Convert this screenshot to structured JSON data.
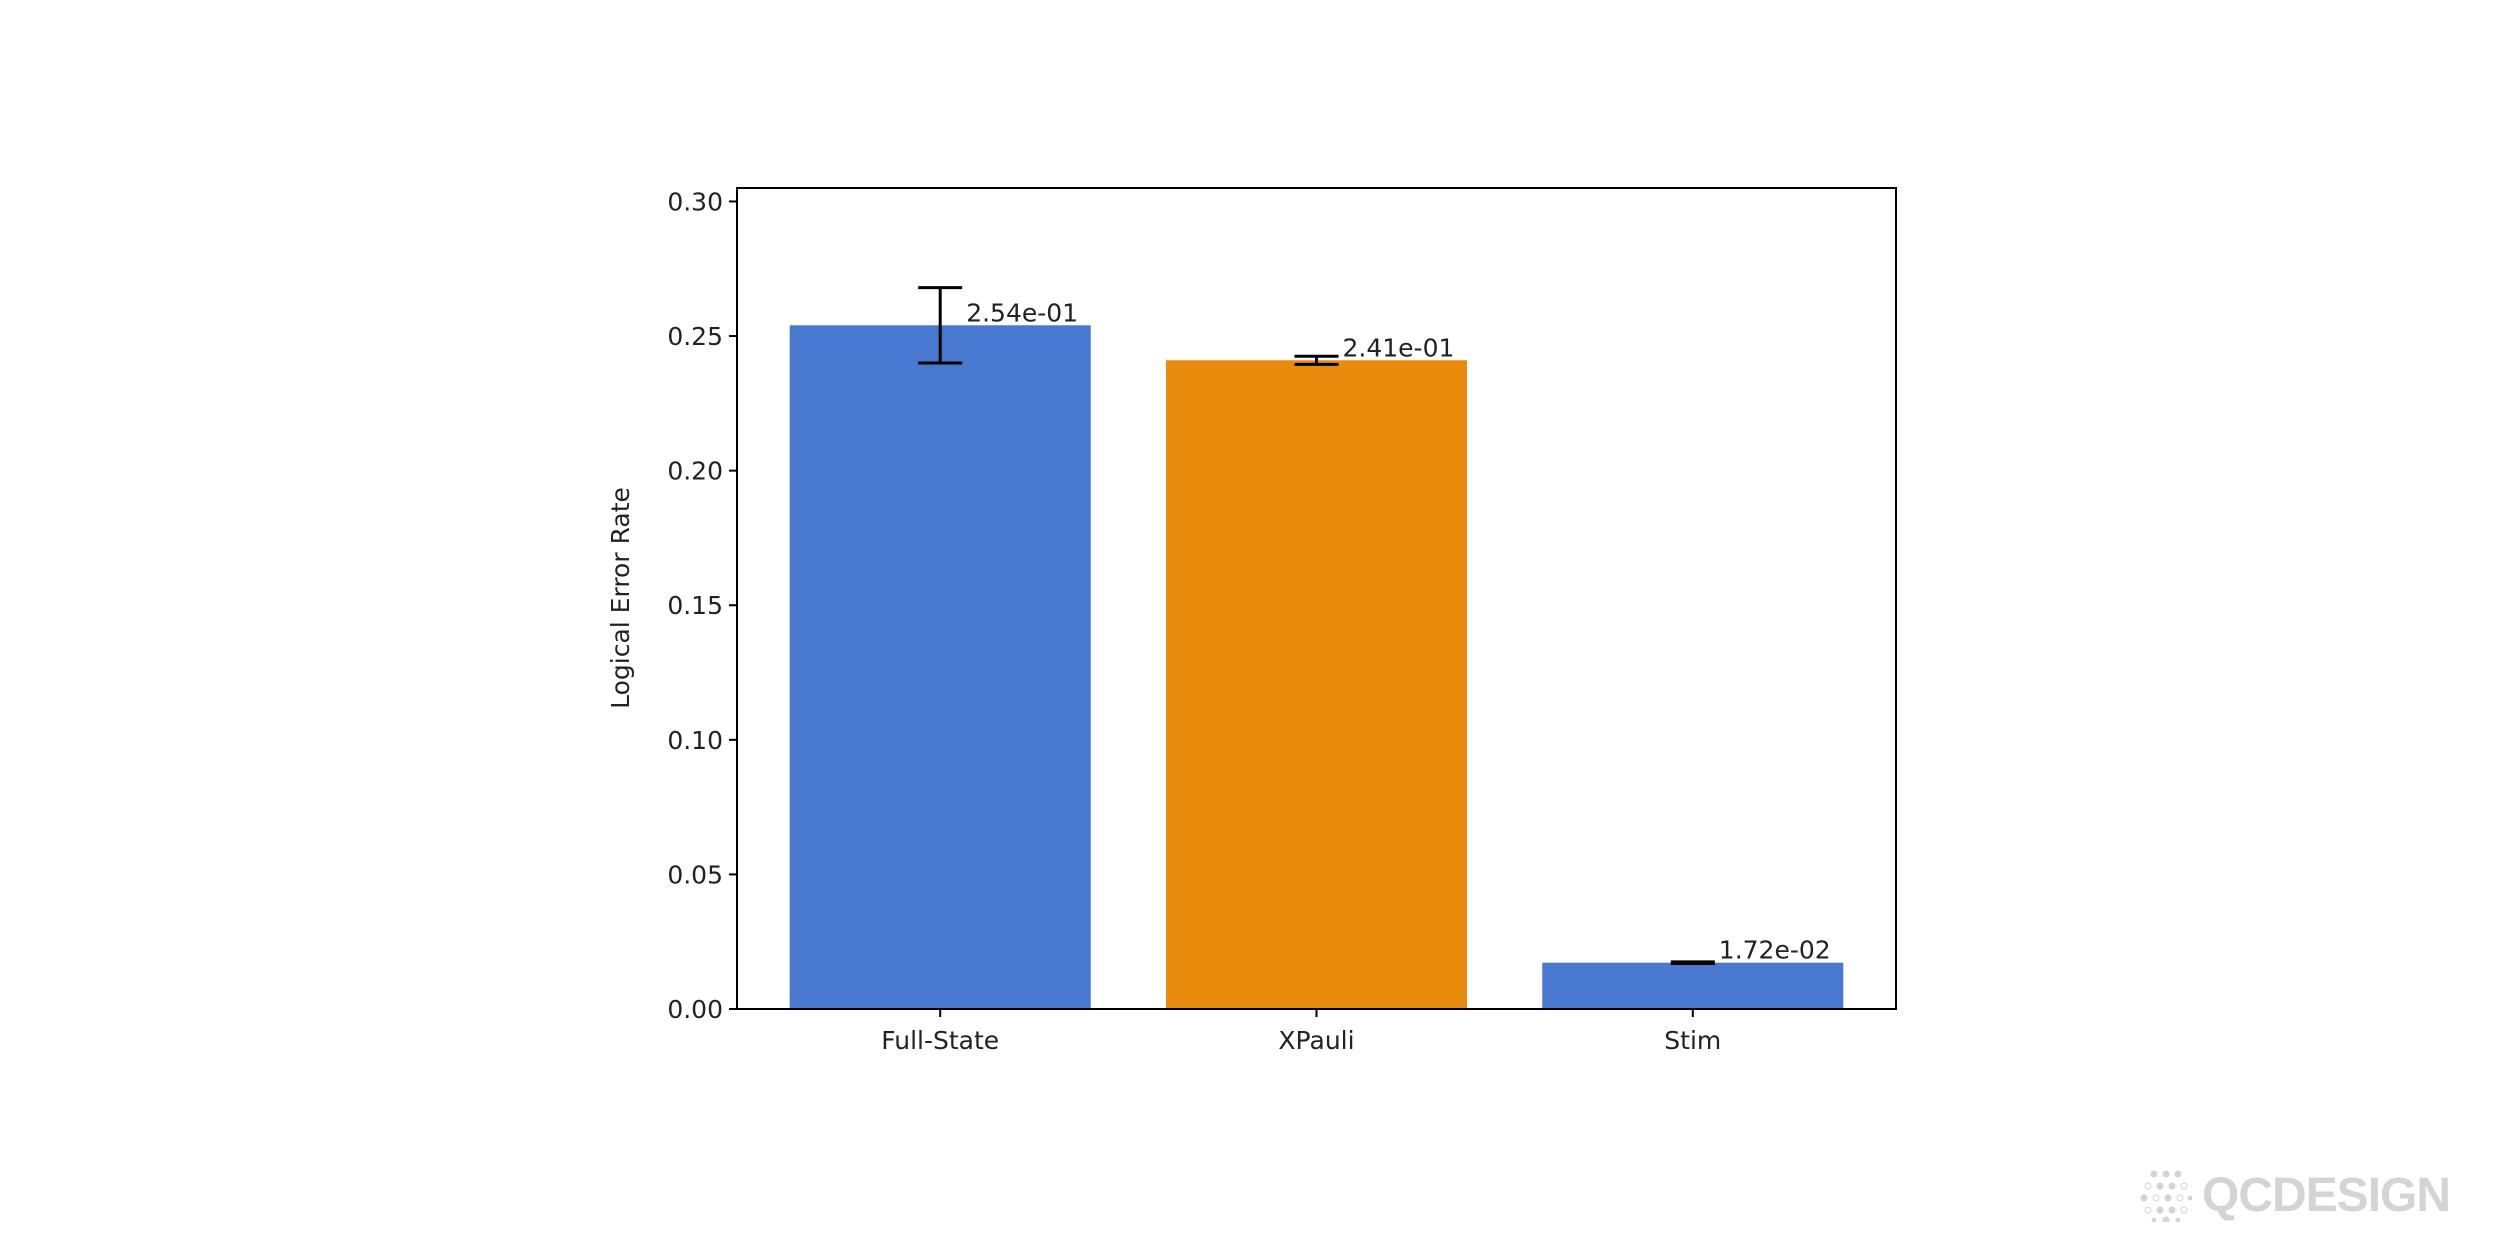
{
  "chart_data": {
    "type": "bar",
    "title": "",
    "xlabel": "",
    "ylabel": "Logical Error Rate",
    "categories": [
      "Full-State",
      "XPauli",
      "Stim"
    ],
    "values": [
      0.254,
      0.241,
      0.0172
    ],
    "errors": [
      0.014,
      0.0015,
      0.0003
    ],
    "value_labels": [
      "2.54e-01",
      "2.41e-01",
      "1.72e-02"
    ],
    "colors": [
      "#4878d0",
      "#e88b0d",
      "#4878d0"
    ],
    "ylim": [
      0,
      0.305
    ],
    "yticks": [
      0.0,
      0.05,
      0.1,
      0.15,
      0.2,
      0.25,
      0.3
    ],
    "ytick_labels": [
      "0.00",
      "0.05",
      "0.10",
      "0.15",
      "0.20",
      "0.25",
      "0.30"
    ],
    "grid": false,
    "legend": null
  },
  "watermark": {
    "text": "QCDESIGN"
  }
}
